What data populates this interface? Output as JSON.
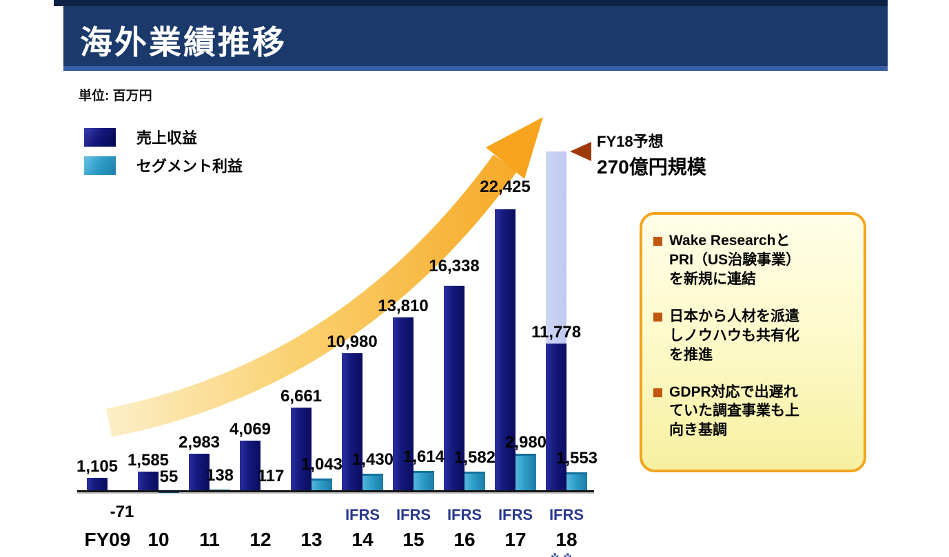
{
  "header": {
    "title": "海外業績推移"
  },
  "unit_label": "単位: 百万円",
  "legend": {
    "revenue_label": "売上収益",
    "segment_label": "セグメント利益"
  },
  "forecast_note": {
    "line1": "FY18予想",
    "line2": "270億円規模"
  },
  "callout": {
    "border_color": "#f2a41d",
    "bullets": [
      "Wake Researchと\nPRI（US治験事業）\nを新規に連結",
      "日本から人材を派遣\nしノウハウも共有化\nを推進",
      "GDPR対応で出遅れ\nていた調査事業も上\n向き基調"
    ]
  },
  "foot_fragment": "※※",
  "chart_data": {
    "type": "bar",
    "title": "海外業績推移",
    "unit": "百万円",
    "categories": [
      "FY09",
      "10",
      "11",
      "12",
      "13",
      "14",
      "15",
      "16",
      "17",
      "18"
    ],
    "series": [
      {
        "name": "売上収益",
        "color": "#151a7e",
        "values": [
          1105,
          1585,
          2983,
          4069,
          6661,
          10980,
          13810,
          16338,
          22425,
          11778
        ],
        "labels": [
          "1,105",
          "1,585",
          "2,983",
          "4,069",
          "6,661",
          "10,980",
          "13,810",
          "16,338",
          "22,425",
          "11,778"
        ]
      },
      {
        "name": "セグメント利益",
        "color": "#2d9bc8",
        "values": [
          -71,
          55,
          138,
          117,
          1043,
          1430,
          1614,
          1582,
          2980,
          1553
        ],
        "labels": [
          "-71",
          "55",
          "138",
          "117",
          "1,043",
          "1,430",
          "1,614",
          "1,582",
          "2,980",
          "1,553"
        ]
      }
    ],
    "forecast": {
      "category": "18",
      "value": 27000,
      "label": "270億円規模",
      "color": "#c7cef2"
    },
    "ifrs_label": "IFRS",
    "ifrs_categories": [
      "14",
      "15",
      "16",
      "17",
      "18"
    ],
    "ylim": [
      0,
      27000
    ],
    "grid": false,
    "legend_position": "top-left",
    "trend_arrow": {
      "from_category": "FY09",
      "to_category": "18",
      "colors": [
        "#fcefc9",
        "#f6a41e"
      ]
    }
  }
}
